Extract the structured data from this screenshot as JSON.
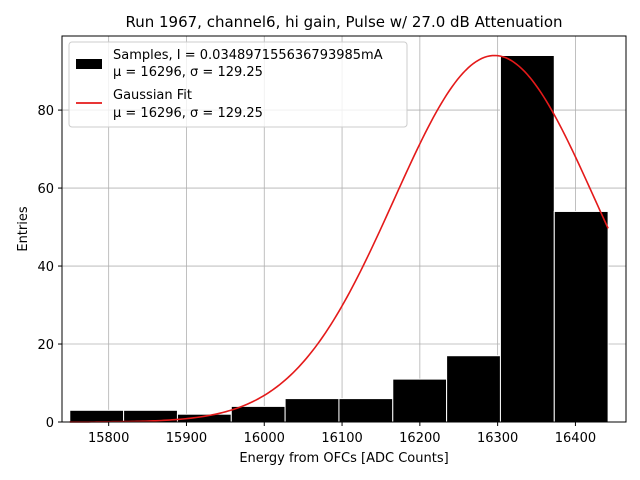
{
  "chart_data": {
    "type": "bar",
    "title": "Run 1967, channel6, hi gain, Pulse w/ 27.0 dB Attenuation",
    "xlabel": "Energy from OFCs [ADC Counts]",
    "ylabel": "Entries",
    "xlim": [
      15740,
      16465
    ],
    "ylim": [
      0,
      99
    ],
    "xticks": [
      15800,
      15900,
      16000,
      16100,
      16200,
      16300,
      16400
    ],
    "yticks": [
      0,
      20,
      40,
      60,
      80
    ],
    "grid": true,
    "bins": [
      {
        "left": 15750,
        "right": 15819.2,
        "count": 3
      },
      {
        "left": 15819.2,
        "right": 15888.4,
        "count": 3
      },
      {
        "left": 15888.4,
        "right": 15957.6,
        "count": 2
      },
      {
        "left": 15957.6,
        "right": 16026.8,
        "count": 4
      },
      {
        "left": 16026.8,
        "right": 16096.0,
        "count": 6
      },
      {
        "left": 16096.0,
        "right": 16165.2,
        "count": 6
      },
      {
        "left": 16165.2,
        "right": 16234.4,
        "count": 11
      },
      {
        "left": 16234.4,
        "right": 16303.6,
        "count": 17
      },
      {
        "left": 16303.6,
        "right": 16372.8,
        "count": 94
      },
      {
        "left": 16372.8,
        "right": 16442.0,
        "count": 54
      }
    ],
    "bar_color": "#000000",
    "fit": {
      "type": "gaussian",
      "amplitude": 94,
      "mu": 16296,
      "sigma": 129.25,
      "x_range": [
        15750,
        16442
      ],
      "color": "#e41a1a"
    },
    "legend": {
      "position": "top-left",
      "entries": [
        {
          "line1": "Samples, I = 0.034897155636793985mA",
          "line2": "μ = 16296, σ = 129.25",
          "style": "bar",
          "color": "#000000"
        },
        {
          "line1": "Gaussian Fit",
          "line2": "μ = 16296, σ = 129.25",
          "style": "line",
          "color": "#e41a1a"
        }
      ]
    }
  }
}
